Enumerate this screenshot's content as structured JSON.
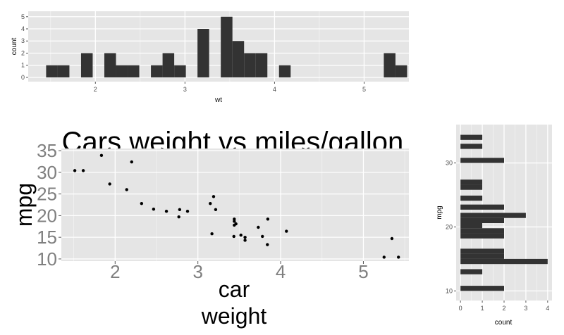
{
  "chart_data": [
    {
      "id": "top_histogram",
      "type": "bar",
      "orientation": "vertical",
      "xlabel": "wt",
      "ylabel": "count",
      "xlim": [
        1.25,
        5.5
      ],
      "ylim": [
        0,
        5
      ],
      "x_ticks": [
        "2",
        "3",
        "4",
        "5"
      ],
      "y_ticks": [
        "0",
        "1",
        "2",
        "3",
        "4",
        "5"
      ],
      "bin_width": 0.13,
      "bins": [
        {
          "x0": 1.45,
          "count": 1
        },
        {
          "x0": 1.58,
          "count": 1
        },
        {
          "x0": 1.84,
          "count": 2
        },
        {
          "x0": 2.1,
          "count": 2
        },
        {
          "x0": 2.23,
          "count": 1
        },
        {
          "x0": 2.36,
          "count": 1
        },
        {
          "x0": 2.62,
          "count": 1
        },
        {
          "x0": 2.75,
          "count": 2
        },
        {
          "x0": 2.88,
          "count": 1
        },
        {
          "x0": 3.14,
          "count": 4
        },
        {
          "x0": 3.4,
          "count": 5
        },
        {
          "x0": 3.53,
          "count": 3
        },
        {
          "x0": 3.66,
          "count": 2
        },
        {
          "x0": 3.79,
          "count": 2
        },
        {
          "x0": 4.05,
          "count": 1
        },
        {
          "x0": 5.22,
          "count": 2
        },
        {
          "x0": 5.35,
          "count": 1
        }
      ]
    },
    {
      "id": "scatter",
      "type": "scatter",
      "title": "Cars weight vs miles/gallon",
      "xlabel_lines": [
        "car",
        "weight"
      ],
      "ylabel": "mpg",
      "xlim": [
        1.35,
        5.55
      ],
      "ylim": [
        9.5,
        35.5
      ],
      "x_ticks": [
        "2",
        "3",
        "4",
        "5"
      ],
      "y_ticks": [
        "10",
        "15",
        "20",
        "25",
        "30",
        "35"
      ],
      "points": [
        [
          2.62,
          21.0
        ],
        [
          2.875,
          21.0
        ],
        [
          2.32,
          22.8
        ],
        [
          3.215,
          21.4
        ],
        [
          3.44,
          18.7
        ],
        [
          3.46,
          18.1
        ],
        [
          3.57,
          14.3
        ],
        [
          3.19,
          24.4
        ],
        [
          3.15,
          22.8
        ],
        [
          3.44,
          19.2
        ],
        [
          3.44,
          17.8
        ],
        [
          4.07,
          16.4
        ],
        [
          3.73,
          17.3
        ],
        [
          3.78,
          15.2
        ],
        [
          5.25,
          10.4
        ],
        [
          5.424,
          10.4
        ],
        [
          5.345,
          14.7
        ],
        [
          2.2,
          32.4
        ],
        [
          1.615,
          30.4
        ],
        [
          1.835,
          33.9
        ],
        [
          2.465,
          21.5
        ],
        [
          3.52,
          15.5
        ],
        [
          3.435,
          15.2
        ],
        [
          3.84,
          13.3
        ],
        [
          3.845,
          19.2
        ],
        [
          1.935,
          27.3
        ],
        [
          2.14,
          26.0
        ],
        [
          1.513,
          30.4
        ],
        [
          3.17,
          15.8
        ],
        [
          2.77,
          19.7
        ],
        [
          3.57,
          15.0
        ],
        [
          2.78,
          21.4
        ]
      ]
    },
    {
      "id": "right_histogram",
      "type": "bar",
      "orientation": "horizontal",
      "xlabel": "count",
      "ylabel": "mpg",
      "xlim": [
        -0.2,
        4.2
      ],
      "ylim": [
        8.5,
        36
      ],
      "x_ticks": [
        "0",
        "1",
        "2",
        "3",
        "4"
      ],
      "y_ticks": [
        "10",
        "20",
        "30"
      ],
      "bin_height": 0.8,
      "bins": [
        {
          "y0": 10.0,
          "count": 2
        },
        {
          "y0": 12.6,
          "count": 1
        },
        {
          "y0": 14.2,
          "count": 4
        },
        {
          "y0": 15.0,
          "count": 2
        },
        {
          "y0": 15.8,
          "count": 2
        },
        {
          "y0": 18.2,
          "count": 2
        },
        {
          "y0": 19.0,
          "count": 2
        },
        {
          "y0": 19.8,
          "count": 1
        },
        {
          "y0": 20.6,
          "count": 2
        },
        {
          "y0": 21.4,
          "count": 3
        },
        {
          "y0": 22.7,
          "count": 2
        },
        {
          "y0": 24.1,
          "count": 1
        },
        {
          "y0": 25.8,
          "count": 1
        },
        {
          "y0": 26.6,
          "count": 1
        },
        {
          "y0": 30.0,
          "count": 2
        },
        {
          "y0": 32.2,
          "count": 1
        },
        {
          "y0": 33.6,
          "count": 1
        }
      ]
    }
  ]
}
